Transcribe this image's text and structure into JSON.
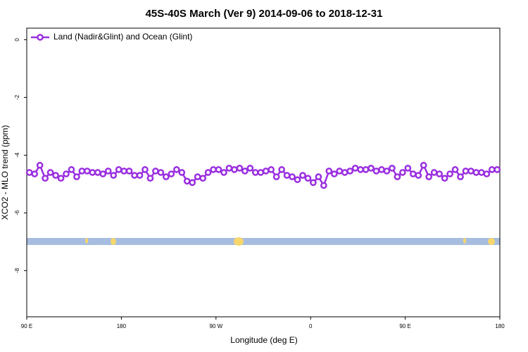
{
  "chart_data": {
    "type": "line",
    "title": "45S-40S March (Ver 9)   2014-09-06 to 2018-12-31",
    "x_label": "Longitude (deg E)",
    "y_label": "XCO2 - MLO trend (ppm)",
    "x": [
      92.5,
      97.5,
      102.5,
      107.5,
      112.5,
      117.5,
      122.5,
      127.5,
      132.5,
      137.5,
      142.5,
      147.5,
      152.5,
      157.5,
      162.5,
      167.5,
      172.5,
      177.5,
      182.5,
      187.5,
      192.5,
      197.5,
      202.5,
      207.5,
      212.5,
      217.5,
      222.5,
      227.5,
      232.5,
      237.5,
      242.5,
      247.5,
      252.5,
      257.5,
      262.5,
      267.5,
      272.5,
      277.5,
      282.5,
      287.5,
      292.5,
      297.5,
      302.5,
      307.5,
      312.5,
      317.5,
      322.5,
      327.5,
      332.5,
      337.5,
      342.5,
      347.5,
      352.5,
      357.5,
      362.5,
      367.5,
      372.5,
      377.5,
      382.5,
      387.5,
      392.5,
      397.5,
      402.5,
      407.5,
      412.5,
      417.5,
      422.5,
      427.5,
      432.5,
      437.5,
      442.5,
      447.5,
      452.5,
      457.5,
      462.5,
      467.5,
      472.5,
      477.5,
      482.5,
      487.5,
      492.5,
      497.5,
      502.5,
      507.5,
      512.5,
      517.5,
      522.5,
      527.5,
      532.5,
      537.5
    ],
    "series": [
      {
        "name": "Land (Nadir&Glint) and Ocean (Glint)",
        "color": "#9a2fe0",
        "values": [
          -4.6,
          -4.65,
          -4.35,
          -4.8,
          -4.6,
          -4.7,
          -4.8,
          -4.65,
          -4.5,
          -4.75,
          -4.55,
          -4.55,
          -4.6,
          -4.6,
          -4.65,
          -4.55,
          -4.7,
          -4.5,
          -4.55,
          -4.55,
          -4.7,
          -4.7,
          -4.5,
          -4.8,
          -4.55,
          -4.6,
          -4.75,
          -4.65,
          -4.5,
          -4.6,
          -4.9,
          -4.95,
          -4.75,
          -4.8,
          -4.6,
          -4.5,
          -4.5,
          -4.6,
          -4.45,
          -4.5,
          -4.45,
          -4.55,
          -4.45,
          -4.6,
          -4.6,
          -4.55,
          -4.5,
          -4.75,
          -4.5,
          -4.7,
          -4.75,
          -4.85,
          -4.7,
          -4.8,
          -4.95,
          -4.75,
          -5.05,
          -4.55,
          -4.65,
          -4.55,
          -4.6,
          -4.55,
          -4.45,
          -4.5,
          -4.5,
          -4.45,
          -4.55,
          -4.5,
          -4.55,
          -4.45,
          -4.75,
          -4.6,
          -4.45,
          -4.65,
          -4.7,
          -4.35,
          -4.75,
          -4.6,
          -4.65,
          -4.8,
          -4.65,
          -4.5,
          -4.75,
          -4.55,
          -4.55,
          -4.6,
          -4.6,
          -4.65,
          -4.5,
          -4.5
        ]
      }
    ],
    "xlim": [
      90,
      540
    ],
    "xticks": [
      {
        "value": 90,
        "label": "90 E"
      },
      {
        "value": 180,
        "label": "180"
      },
      {
        "value": 270,
        "label": "90 W"
      },
      {
        "value": 360,
        "label": "0"
      },
      {
        "value": 450,
        "label": "90 E"
      },
      {
        "value": 540,
        "label": "180"
      }
    ],
    "ylim": [
      -9.6,
      0.4
    ],
    "yticks": [
      0,
      -2,
      -4,
      -6,
      -8
    ],
    "legend": "top-left"
  }
}
